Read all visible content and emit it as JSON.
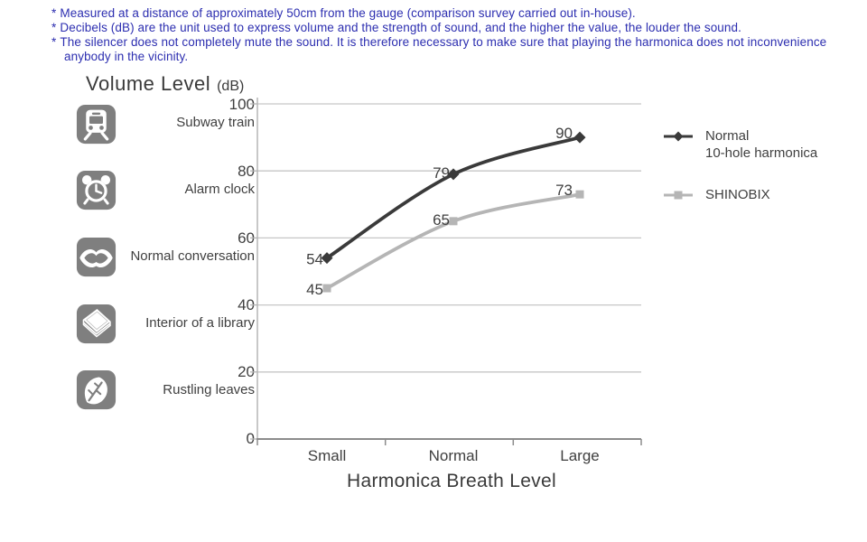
{
  "notes": {
    "bullet": "*",
    "color": "#2c2eb0",
    "items": [
      "Measured at a distance of approximately 50cm from the gauge (comparison survey carried out in-house).",
      "Decibels (dB) are the unit used to express volume and the strength of sound, and the higher the value, the louder the sound.",
      "The silencer does not completely mute the sound. It is therefore necessary to make sure that playing the harmonica does not inconvenience anybody in the vicinity."
    ]
  },
  "chart_data": {
    "type": "line",
    "title": "Volume Level",
    "title_unit": "(dB)",
    "xlabel": "Harmonica Breath Level",
    "ylabel": "Volume Level (dB)",
    "categories": [
      "Small",
      "Normal",
      "Large"
    ],
    "series": [
      {
        "name": "Normal 10-hole harmonica",
        "legend_lines": [
          "Normal",
          "10-hole harmonica"
        ],
        "values": [
          54,
          79,
          90
        ],
        "color": "#3a3a3a",
        "marker": "diamond"
      },
      {
        "name": "SHINOBIX",
        "legend_lines": [
          "SHINOBIX"
        ],
        "values": [
          45,
          65,
          73
        ],
        "color": "#b5b5b5",
        "marker": "square"
      }
    ],
    "ylim": [
      0,
      100
    ],
    "yticks": [
      0,
      20,
      40,
      60,
      80,
      100
    ],
    "ytick_references": [
      {
        "value": 100,
        "label": "Subway train",
        "icon": "subway-train-icon"
      },
      {
        "value": 80,
        "label": "Alarm clock",
        "icon": "alarm-clock-icon"
      },
      {
        "value": 60,
        "label": "Normal conversation",
        "icon": "lips-icon"
      },
      {
        "value": 40,
        "label": "Interior of a library",
        "icon": "book-icon"
      },
      {
        "value": 20,
        "label": "Rustling leaves",
        "icon": "leaf-icon"
      }
    ],
    "grid": "horizontal",
    "legend_position": "right",
    "colors": {
      "grid_line": "#c6c6c6",
      "y_axis": "#b5b5b5",
      "x_axis": "#8c8c8c",
      "text": "#3f3f3f",
      "icon_background": "#7f7f7f"
    }
  }
}
